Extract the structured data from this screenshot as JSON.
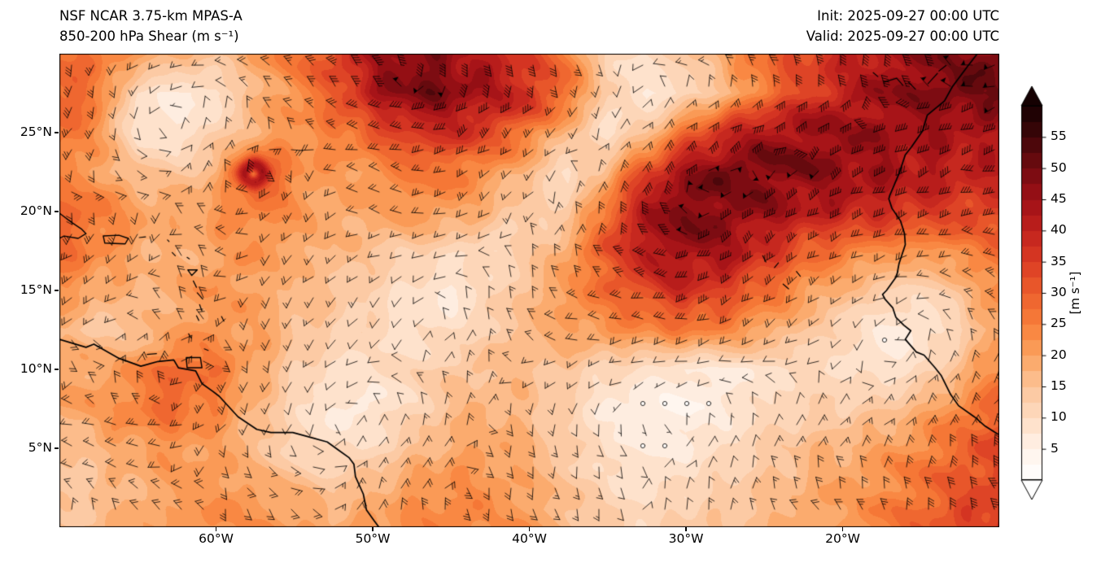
{
  "header": {
    "model": "NSF NCAR 3.75-km MPAS-A",
    "field": "850-200 hPa Shear (m s⁻¹)",
    "init": "Init: 2025-09-27 00:00 UTC",
    "valid": "Valid: 2025-09-27 00:00 UTC"
  },
  "chart_data": {
    "type": "heatmap",
    "title": "NSF NCAR 3.75-km MPAS-A 850-200 hPa Shear",
    "units": "m s⁻¹",
    "projection": "lat-lon",
    "lon_range": [
      -70,
      -10
    ],
    "lat_range": [
      0,
      30
    ],
    "x_ticks": [
      {
        "value": -60,
        "label": "60°W"
      },
      {
        "value": -50,
        "label": "50°W"
      },
      {
        "value": -40,
        "label": "40°W"
      },
      {
        "value": -30,
        "label": "30°W"
      },
      {
        "value": -20,
        "label": "20°W"
      }
    ],
    "y_ticks": [
      {
        "value": 25,
        "label": "25°N"
      },
      {
        "value": 20,
        "label": "20°N"
      },
      {
        "value": 15,
        "label": "15°N"
      },
      {
        "value": 10,
        "label": "10°N"
      },
      {
        "value": 5,
        "label": "5°N"
      }
    ],
    "colorbar": {
      "label": "[m s⁻¹]",
      "min": 0,
      "max": 60,
      "ticks": [
        5,
        10,
        15,
        20,
        25,
        30,
        35,
        40,
        45,
        50,
        55
      ],
      "stops": [
        [
          0,
          "#ffffff"
        ],
        [
          5,
          "#fff3ea"
        ],
        [
          10,
          "#fddcc2"
        ],
        [
          15,
          "#fcc49a"
        ],
        [
          20,
          "#fba35f"
        ],
        [
          25,
          "#f87f3a"
        ],
        [
          30,
          "#ec5f2c"
        ],
        [
          35,
          "#da3b24"
        ],
        [
          40,
          "#c0211d"
        ],
        [
          45,
          "#9f1016"
        ],
        [
          50,
          "#720b10"
        ],
        [
          55,
          "#400609"
        ],
        [
          60,
          "#150102"
        ]
      ]
    },
    "wind_barbs": {
      "convention": "half barb = 5, full barb = 10, pennant = 50 m s⁻¹; open circle = calm/light"
    },
    "vortex": {
      "lon": -57.6,
      "lat": 22.4
    },
    "shear_grid": {
      "lons": [
        -70,
        -67.5,
        -65,
        -62.5,
        -60,
        -57.5,
        -55,
        -52.5,
        -50,
        -47.5,
        -45,
        -42.5,
        -40,
        -37.5,
        -35,
        -32.5,
        -30,
        -27.5,
        -25,
        -22.5,
        -20,
        -17.5,
        -15,
        -12.5,
        -10
      ],
      "lats": [
        30,
        27.5,
        25,
        22.5,
        20,
        17.5,
        15,
        12.5,
        10,
        7.5,
        5,
        2.5,
        0
      ],
      "values_m_s": [
        [
          28,
          26,
          22,
          18,
          16,
          20,
          26,
          34,
          44,
          48,
          46,
          40,
          34,
          24,
          12,
          10,
          14,
          20,
          28,
          33,
          38,
          43,
          46,
          49,
          50
        ],
        [
          30,
          26,
          9,
          7,
          8,
          17,
          23,
          30,
          42,
          50,
          48,
          43,
          38,
          28,
          12,
          7,
          10,
          16,
          26,
          34,
          40,
          45,
          48,
          50,
          50
        ],
        [
          28,
          22,
          8,
          7,
          12,
          18,
          22,
          25,
          30,
          36,
          38,
          34,
          26,
          16,
          9,
          14,
          28,
          38,
          44,
          46,
          46,
          45,
          44,
          43,
          42
        ],
        [
          24,
          20,
          16,
          14,
          18,
          34,
          24,
          20,
          22,
          26,
          26,
          22,
          16,
          9,
          18,
          34,
          46,
          50,
          50,
          48,
          46,
          44,
          42,
          40,
          40
        ],
        [
          30,
          26,
          21,
          19,
          22,
          25,
          22,
          19,
          20,
          22,
          21,
          17,
          12,
          13,
          28,
          44,
          50,
          48,
          45,
          42,
          40,
          38,
          36,
          34,
          34
        ],
        [
          28,
          24,
          19,
          17,
          20,
          22,
          19,
          17,
          15,
          13,
          11,
          10,
          13,
          20,
          32,
          42,
          46,
          44,
          38,
          30,
          26,
          23,
          22,
          24,
          28
        ],
        [
          22,
          19,
          17,
          19,
          22,
          20,
          17,
          15,
          12,
          9,
          7,
          11,
          16,
          22,
          28,
          34,
          38,
          34,
          28,
          22,
          17,
          13,
          11,
          15,
          24
        ],
        [
          17,
          14,
          15,
          19,
          22,
          20,
          16,
          13,
          11,
          9,
          9,
          13,
          17,
          20,
          22,
          24,
          26,
          24,
          20,
          15,
          11,
          7,
          7,
          12,
          20
        ],
        [
          21,
          19,
          23,
          30,
          26,
          20,
          13,
          9,
          9,
          11,
          14,
          16,
          16,
          14,
          11,
          9,
          7,
          7,
          9,
          10,
          10,
          8,
          10,
          16,
          24
        ],
        [
          19,
          21,
          26,
          28,
          24,
          17,
          11,
          7,
          7,
          11,
          16,
          18,
          16,
          12,
          7,
          5,
          5,
          7,
          10,
          12,
          13,
          14,
          18,
          24,
          30
        ],
        [
          15,
          17,
          20,
          22,
          20,
          16,
          11,
          9,
          11,
          15,
          19,
          20,
          18,
          13,
          9,
          7,
          7,
          10,
          13,
          16,
          18,
          20,
          24,
          29,
          33
        ],
        [
          13,
          15,
          18,
          20,
          22,
          20,
          17,
          15,
          17,
          21,
          23,
          22,
          19,
          15,
          11,
          9,
          11,
          13,
          15,
          18,
          20,
          23,
          27,
          31,
          35
        ],
        [
          15,
          17,
          19,
          21,
          23,
          23,
          21,
          19,
          21,
          23,
          25,
          23,
          21,
          17,
          13,
          11,
          13,
          15,
          17,
          19,
          21,
          25,
          29,
          33,
          36
        ]
      ]
    },
    "geo": {
      "mainland": [
        [
          [
            -70,
            11.9
          ],
          [
            -68.3,
            11.4
          ],
          [
            -67.8,
            11.6
          ],
          [
            -66.2,
            10.7
          ],
          [
            -64.8,
            10.2
          ],
          [
            -63.7,
            10.5
          ],
          [
            -62.7,
            10.6
          ],
          [
            -62.4,
            10.1
          ],
          [
            -61.3,
            9.9
          ],
          [
            -60.9,
            9.1
          ],
          [
            -60.2,
            8.6
          ],
          [
            -59.8,
            8.3
          ],
          [
            -58.6,
            7.0
          ],
          [
            -57.4,
            6.2
          ],
          [
            -56.5,
            6.0
          ],
          [
            -55.1,
            6.0
          ],
          [
            -54.0,
            5.7
          ],
          [
            -52.9,
            5.4
          ],
          [
            -52.2,
            4.9
          ],
          [
            -51.5,
            4.4
          ],
          [
            -51.2,
            4.0
          ],
          [
            -51.1,
            3.2
          ],
          [
            -50.6,
            2.1
          ],
          [
            -50.4,
            1.1
          ],
          [
            -49.9,
            0.4
          ],
          [
            -49.6,
            0.0
          ]
        ],
        [
          [
            -11.4,
            30
          ],
          [
            -12.1,
            29.1
          ],
          [
            -13.0,
            27.9
          ],
          [
            -13.5,
            27.0
          ],
          [
            -14.6,
            26.1
          ],
          [
            -14.9,
            25.1
          ],
          [
            -15.6,
            24.1
          ],
          [
            -16.0,
            23.6
          ],
          [
            -16.4,
            22.4
          ],
          [
            -17.0,
            21.0
          ],
          [
            -17.05,
            20.8
          ],
          [
            -16.85,
            20.2
          ],
          [
            -16.3,
            19.4
          ],
          [
            -16.05,
            18.6
          ],
          [
            -16.0,
            17.9
          ],
          [
            -16.4,
            16.7
          ],
          [
            -16.55,
            15.9
          ],
          [
            -17.2,
            15.0
          ],
          [
            -17.45,
            14.75
          ],
          [
            -17.3,
            14.45
          ],
          [
            -16.8,
            13.9
          ],
          [
            -16.7,
            13.6
          ],
          [
            -16.6,
            13.3
          ],
          [
            -16.1,
            12.8
          ],
          [
            -15.65,
            12.45
          ],
          [
            -16.0,
            11.9
          ],
          [
            -15.3,
            11.1
          ],
          [
            -14.8,
            10.9
          ],
          [
            -14.1,
            10.1
          ],
          [
            -13.7,
            9.6
          ],
          [
            -13.3,
            8.8
          ],
          [
            -13.1,
            8.4
          ],
          [
            -12.6,
            7.7
          ],
          [
            -11.6,
            7.0
          ],
          [
            -10.9,
            6.4
          ],
          [
            -10.1,
            5.9
          ]
        ]
      ],
      "closed": [
        [
          [
            -61.9,
            10.75
          ],
          [
            -61.0,
            10.75
          ],
          [
            -60.9,
            10.1
          ],
          [
            -61.85,
            10.1
          ],
          [
            -61.9,
            10.75
          ]
        ],
        [
          [
            -70,
            19.9
          ],
          [
            -69.2,
            19.3
          ],
          [
            -68.6,
            18.9
          ],
          [
            -68.3,
            18.6
          ],
          [
            -68.8,
            18.3
          ],
          [
            -69.7,
            18.45
          ],
          [
            -70,
            18.3
          ]
        ],
        [
          [
            -67.2,
            18.45
          ],
          [
            -66.2,
            18.5
          ],
          [
            -65.6,
            18.3
          ],
          [
            -65.8,
            17.95
          ],
          [
            -67.1,
            18.0
          ],
          [
            -67.2,
            18.45
          ]
        ],
        [
          [
            -61.8,
            16.3
          ],
          [
            -61.2,
            16.3
          ],
          [
            -61.55,
            15.95
          ],
          [
            -61.8,
            16.3
          ]
        ]
      ],
      "island_segments": [
        [
          [
            -64.9,
            18.35
          ],
          [
            -64.5,
            18.4
          ]
        ],
        [
          [
            -63.1,
            18.2
          ],
          [
            -63.0,
            18.1
          ]
        ],
        [
          [
            -62.8,
            17.4
          ],
          [
            -62.6,
            17.2
          ]
        ],
        [
          [
            -61.85,
            17.1
          ],
          [
            -61.7,
            17.0
          ]
        ],
        [
          [
            -61.45,
            15.6
          ],
          [
            -61.25,
            15.2
          ]
        ],
        [
          [
            -61.2,
            14.85
          ],
          [
            -60.85,
            14.45
          ]
        ],
        [
          [
            -61.05,
            14.1
          ],
          [
            -60.9,
            13.7
          ]
        ],
        [
          [
            -61.25,
            13.4
          ],
          [
            -61.1,
            13.1
          ]
        ],
        [
          [
            -61.75,
            12.25
          ],
          [
            -61.6,
            12.0
          ]
        ],
        [
          [
            -59.65,
            13.35
          ],
          [
            -59.5,
            13.05
          ]
        ],
        [
          [
            -64.4,
            10.95
          ],
          [
            -63.8,
            11.0
          ]
        ],
        [
          [
            -60.75,
            11.3
          ],
          [
            -60.5,
            11.2
          ]
        ],
        [
          [
            -25.1,
            17.2
          ],
          [
            -24.9,
            16.8
          ]
        ],
        [
          [
            -24.1,
            16.75
          ],
          [
            -24.35,
            16.45
          ]
        ],
        [
          [
            -22.95,
            16.2
          ],
          [
            -22.7,
            15.9
          ]
        ],
        [
          [
            -23.8,
            15.4
          ],
          [
            -23.45,
            15.1
          ]
        ],
        [
          [
            -18.05,
            28.8
          ],
          [
            -17.75,
            28.55
          ]
        ],
        [
          [
            -17.35,
            28.2
          ],
          [
            -16.55,
            28.45
          ],
          [
            -16.15,
            28.0
          ]
        ],
        [
          [
            -15.8,
            28.2
          ],
          [
            -15.35,
            27.75
          ]
        ],
        [
          [
            -14.55,
            28.1
          ],
          [
            -13.95,
            28.75
          ]
        ],
        [
          [
            -13.85,
            28.9
          ],
          [
            -13.4,
            29.25
          ]
        ]
      ]
    }
  }
}
